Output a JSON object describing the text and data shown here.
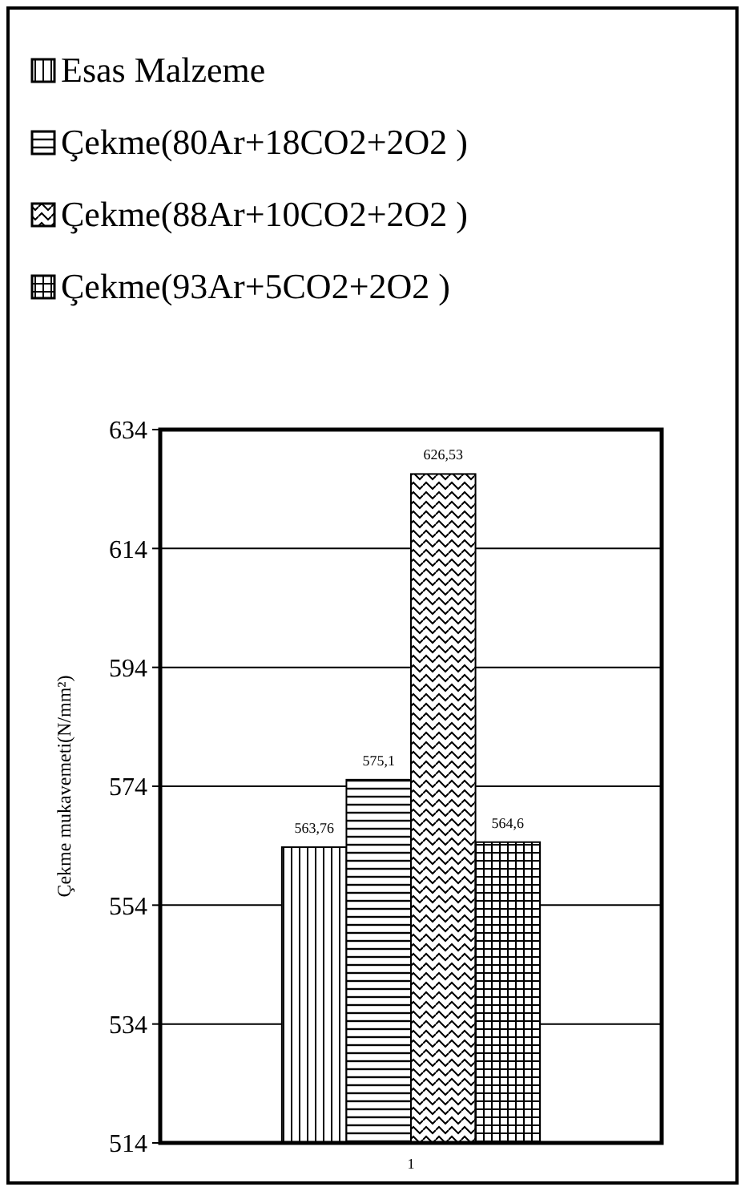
{
  "chart_data": {
    "type": "bar",
    "ylabel": "Çekme mukavemeti(N/mm²)",
    "categories": [
      "1"
    ],
    "series": [
      {
        "name": "Esas Malzeme",
        "color": "#000000",
        "values": [
          563.76
        ],
        "value_labels": [
          "563,76"
        ]
      },
      {
        "name": "Çekme(80Ar+18CO2+2O2 )",
        "color": "#000000",
        "values": [
          575.1
        ],
        "value_labels": [
          "575,1"
        ]
      },
      {
        "name": "Çekme(88Ar+10CO2+2O2 )",
        "color": "#000000",
        "values": [
          626.53
        ],
        "value_labels": [
          "626,53"
        ]
      },
      {
        "name": "Çekme(93Ar+5CO2+2O2 )",
        "color": "#000000",
        "values": [
          564.6
        ],
        "value_labels": [
          "564,6"
        ]
      }
    ],
    "ylim": [
      514,
      634
    ],
    "yticks": [
      514,
      534,
      554,
      574,
      594,
      614,
      634
    ],
    "grid": "y",
    "legend": "top"
  }
}
